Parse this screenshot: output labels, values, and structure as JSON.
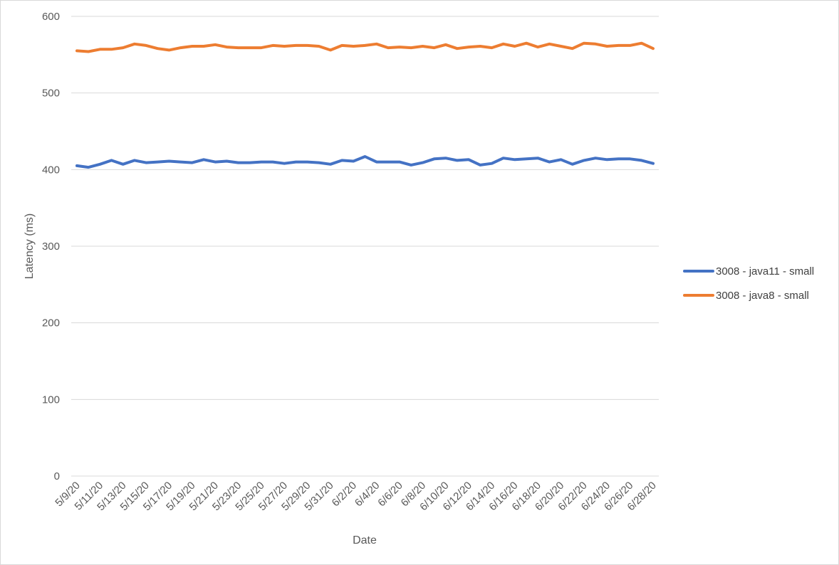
{
  "chart_data": {
    "type": "line",
    "title": "",
    "xlabel": "Date",
    "ylabel": "Latency (ms)",
    "ylim": [
      0,
      600
    ],
    "yticks": [
      0,
      100,
      200,
      300,
      400,
      500,
      600
    ],
    "grid": true,
    "legend_position": "right",
    "x": [
      "5/9/20",
      "5/10/20",
      "5/11/20",
      "5/12/20",
      "5/13/20",
      "5/14/20",
      "5/15/20",
      "5/16/20",
      "5/17/20",
      "5/18/20",
      "5/19/20",
      "5/20/20",
      "5/21/20",
      "5/22/20",
      "5/23/20",
      "5/24/20",
      "5/25/20",
      "5/26/20",
      "5/27/20",
      "5/28/20",
      "5/29/20",
      "5/30/20",
      "5/31/20",
      "6/1/20",
      "6/2/20",
      "6/3/20",
      "6/4/20",
      "6/5/20",
      "6/6/20",
      "6/7/20",
      "6/8/20",
      "6/9/20",
      "6/10/20",
      "6/11/20",
      "6/12/20",
      "6/13/20",
      "6/14/20",
      "6/15/20",
      "6/16/20",
      "6/17/20",
      "6/18/20",
      "6/19/20",
      "6/20/20",
      "6/21/20",
      "6/22/20",
      "6/23/20",
      "6/24/20",
      "6/25/20",
      "6/26/20",
      "6/27/20",
      "6/28/20"
    ],
    "x_tick_labels": [
      "5/9/20",
      "5/11/20",
      "5/13/20",
      "5/15/20",
      "5/17/20",
      "5/19/20",
      "5/21/20",
      "5/23/20",
      "5/25/20",
      "5/27/20",
      "5/29/20",
      "5/31/20",
      "6/2/20",
      "6/4/20",
      "6/6/20",
      "6/8/20",
      "6/10/20",
      "6/12/20",
      "6/14/20",
      "6/16/20",
      "6/18/20",
      "6/20/20",
      "6/22/20",
      "6/24/20",
      "6/26/20",
      "6/28/20"
    ],
    "series": [
      {
        "name": "3008 - java11 - small",
        "color": "#4472c4",
        "values": [
          405,
          403,
          407,
          412,
          407,
          412,
          409,
          410,
          411,
          410,
          409,
          413,
          410,
          411,
          409,
          409,
          410,
          410,
          408,
          410,
          410,
          409,
          407,
          412,
          411,
          417,
          410,
          410,
          410,
          406,
          409,
          414,
          415,
          412,
          413,
          406,
          408,
          415,
          413,
          414,
          415,
          410,
          413,
          407,
          412,
          415,
          413,
          414,
          414,
          412,
          408
        ]
      },
      {
        "name": "3008 - java8 - small",
        "color": "#ed7d31",
        "values": [
          555,
          554,
          557,
          557,
          559,
          564,
          562,
          558,
          556,
          559,
          561,
          561,
          563,
          560,
          559,
          559,
          559,
          562,
          561,
          562,
          562,
          561,
          556,
          562,
          561,
          562,
          564,
          559,
          560,
          559,
          561,
          559,
          563,
          558,
          560,
          561,
          559,
          564,
          561,
          565,
          560,
          564,
          561,
          558,
          565,
          564,
          561,
          562,
          562,
          565,
          558
        ]
      }
    ]
  }
}
